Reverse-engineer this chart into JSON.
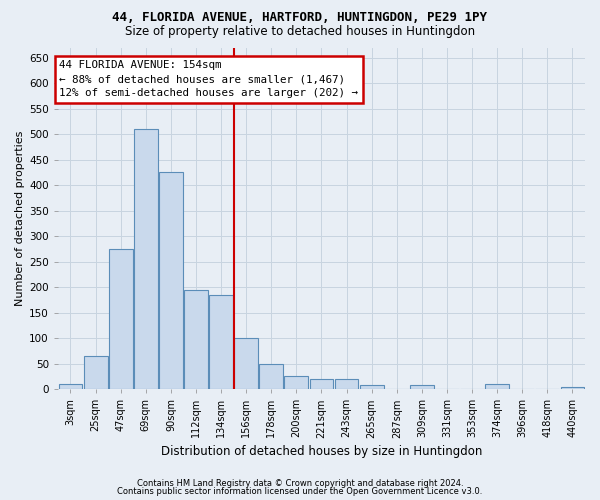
{
  "title_line1": "44, FLORIDA AVENUE, HARTFORD, HUNTINGDON, PE29 1PY",
  "title_line2": "Size of property relative to detached houses in Huntingdon",
  "xlabel": "Distribution of detached houses by size in Huntingdon",
  "ylabel": "Number of detached properties",
  "footnote1": "Contains HM Land Registry data © Crown copyright and database right 2024.",
  "footnote2": "Contains public sector information licensed under the Open Government Licence v3.0.",
  "annotation_line1": "44 FLORIDA AVENUE: 154sqm",
  "annotation_line2": "← 88% of detached houses are smaller (1,467)",
  "annotation_line3": "12% of semi-detached houses are larger (202) →",
  "bar_color": "#c9d9ec",
  "bar_edge_color": "#5b8db8",
  "vline_color": "#cc0000",
  "categories": [
    "3sqm",
    "25sqm",
    "47sqm",
    "69sqm",
    "90sqm",
    "112sqm",
    "134sqm",
    "156sqm",
    "178sqm",
    "200sqm",
    "221sqm",
    "243sqm",
    "265sqm",
    "287sqm",
    "309sqm",
    "331sqm",
    "353sqm",
    "374sqm",
    "396sqm",
    "418sqm",
    "440sqm"
  ],
  "values": [
    10,
    65,
    275,
    510,
    425,
    195,
    185,
    100,
    50,
    25,
    20,
    20,
    8,
    0,
    8,
    0,
    0,
    10,
    0,
    0,
    5
  ],
  "ylim": [
    0,
    670
  ],
  "yticks": [
    0,
    50,
    100,
    150,
    200,
    250,
    300,
    350,
    400,
    450,
    500,
    550,
    600,
    650
  ],
  "background_color": "#e8eef5",
  "grid_color": "#d0d8e4",
  "vline_x_index": 7
}
